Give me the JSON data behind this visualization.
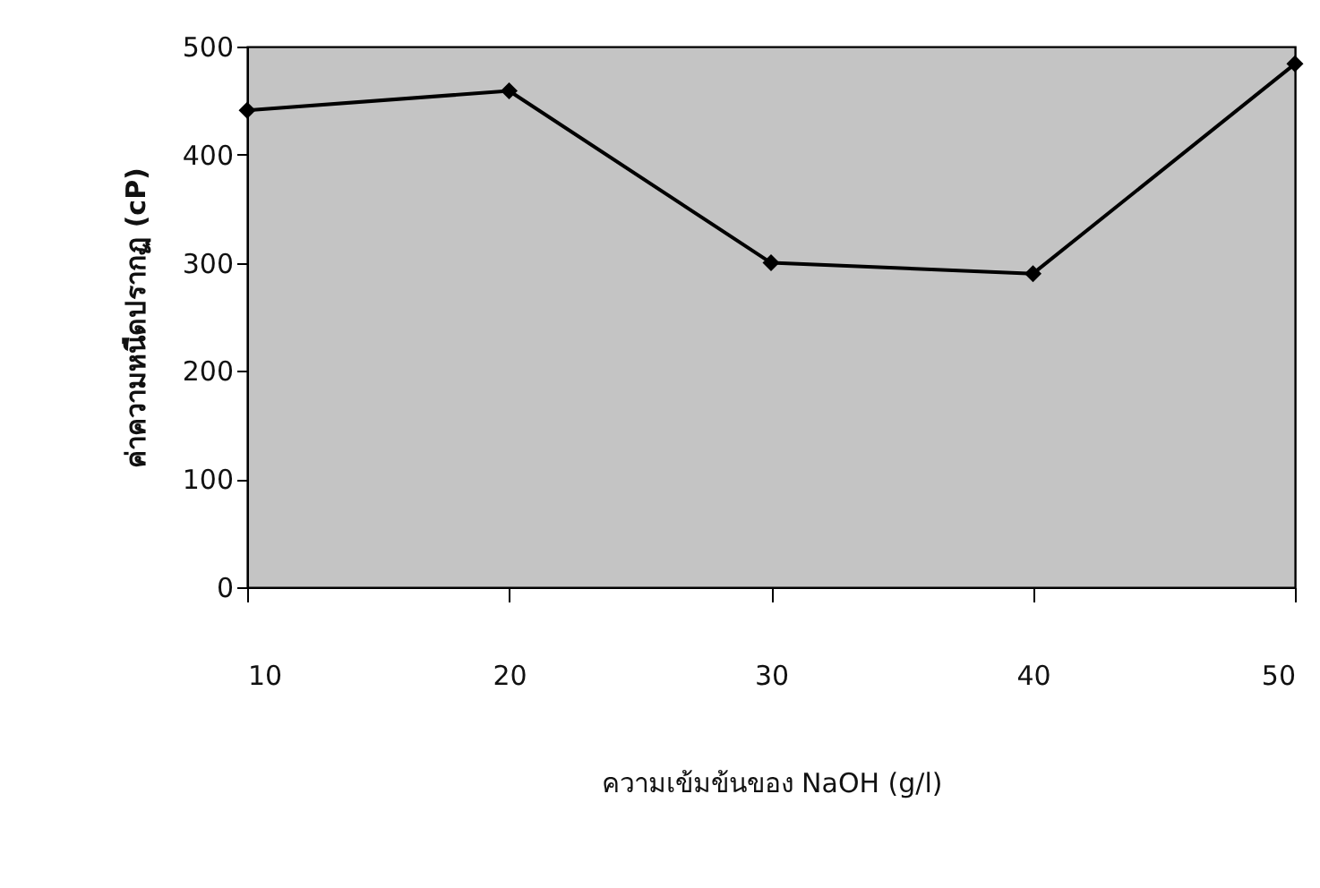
{
  "chart_data": {
    "type": "line",
    "xlabel": "ความเข้มข้นของ NaOH (g/l)",
    "ylabel": "ค่าความหนืดปรากฏ (cP)",
    "x": [
      10,
      20,
      30,
      40,
      50
    ],
    "series": [
      {
        "color": "#000000",
        "values": [
          441,
          459,
          300,
          290,
          484
        ]
      }
    ],
    "xlim": [
      10,
      50
    ],
    "xticks": [
      10,
      20,
      30,
      40,
      50
    ],
    "ylim": [
      0,
      500
    ],
    "yticks": [
      0,
      100,
      200,
      300,
      400,
      500
    ],
    "grid": false,
    "marker": "diamond",
    "line_style": "solid"
  }
}
